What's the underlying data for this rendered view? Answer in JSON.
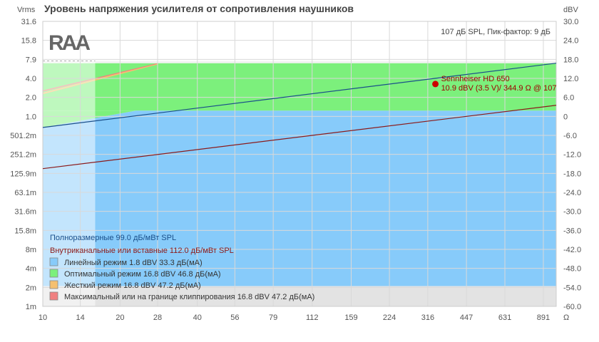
{
  "title": "Уровень напряжения усилителя от сопротивления наушников",
  "left_unit": "Vrms",
  "right_unit": "dBV",
  "x_unit": "Ω",
  "info_text": "107 дБ SPL, Пик-фактор: 9 дБ",
  "logo_text": "RAA",
  "chart_data": {
    "type": "area",
    "x_scale": "log",
    "x_ticks": [
      "10",
      "14",
      "20",
      "28",
      "40",
      "56",
      "79",
      "112",
      "159",
      "224",
      "316",
      "447",
      "631",
      "891"
    ],
    "left_ticks": [
      "31.6",
      "15.8",
      "7.9",
      "4.0",
      "2.0",
      "1.0",
      "501.2m",
      "251.2m",
      "125.9m",
      "63.1m",
      "31.6m",
      "15.8m",
      "8m",
      "4m",
      "2m",
      "1m"
    ],
    "right_ticks": [
      "30.0",
      "24.0",
      "18.0",
      "12.0",
      "6.0",
      "0",
      "-6.0",
      "-12.0",
      "-18.0",
      "-24.0",
      "-30.0",
      "-36.0",
      "-42.0",
      "-48.0",
      "-54.0",
      "-60.0"
    ],
    "x_range": [
      10,
      1000
    ],
    "y_range_dbv": [
      -60,
      30
    ],
    "clip_level_dbv": 16.8,
    "noise_floor_dbv": -53.6,
    "shaded_min_impedance": 16,
    "regions": [
      {
        "name": "Линейный режим 1.8 dBV 33.3 дБ(мА)",
        "color": "#87cbfa",
        "level_dbv": 1.8
      },
      {
        "name": "Оптимальный режим 16.8 dBV 46.8 дБ(мА)",
        "color": "#7cf07c",
        "level_dbv": 16.8
      },
      {
        "name": "Жесткий режим 16.8 dBV 47.2 дБ(мА)",
        "color": "#f5c070",
        "level_dbv": 16.8
      },
      {
        "name": "Максимальный или на границе клиппирования 16.8 dBV 47.2 дБ(мА)",
        "color": "#f08080",
        "level_dbv": 16.8
      }
    ],
    "lines": [
      {
        "name": "Полноразмерные 99.0 дБ/мВт SPL",
        "color": "#1a4f8a",
        "points": [
          [
            10,
            -3.5
          ],
          [
            1000,
            16.8
          ]
        ]
      },
      {
        "name": "Внутриканальные или вставные 112.0 дБ/мВт SPL",
        "color": "#8b1a1a",
        "points": [
          [
            10,
            -16.5
          ],
          [
            1000,
            3.5
          ]
        ]
      }
    ],
    "marker": {
      "label": "Sennheiser HD 650",
      "detail": "10.9 dBV (3.5 V)/ 344.9 Ω @ 107",
      "impedance": 344.9,
      "dbv": 10.9,
      "color": "#cc0000"
    }
  },
  "colors": {
    "grid": "#d9d9d9",
    "floor": "#e3e3e3",
    "fullsize_line": "#1a4f8a",
    "iem_line": "#8b1a1a"
  }
}
